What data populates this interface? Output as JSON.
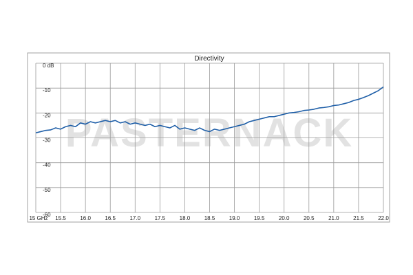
{
  "chart_data": {
    "type": "line",
    "title": "Directivity",
    "watermark": "PASTERNACK",
    "x": [
      15.0,
      15.1,
      15.2,
      15.3,
      15.4,
      15.5,
      15.6,
      15.7,
      15.8,
      15.9,
      16.0,
      16.1,
      16.2,
      16.3,
      16.4,
      16.5,
      16.6,
      16.7,
      16.8,
      16.9,
      17.0,
      17.1,
      17.2,
      17.3,
      17.4,
      17.5,
      17.6,
      17.7,
      17.8,
      17.9,
      18.0,
      18.1,
      18.2,
      18.3,
      18.4,
      18.5,
      18.6,
      18.7,
      18.8,
      18.9,
      19.0,
      19.1,
      19.2,
      19.3,
      19.4,
      19.5,
      19.6,
      19.7,
      19.8,
      19.9,
      20.0,
      20.1,
      20.2,
      20.3,
      20.4,
      20.5,
      20.6,
      20.7,
      20.8,
      20.9,
      21.0,
      21.1,
      21.2,
      21.3,
      21.4,
      21.5,
      21.6,
      21.7,
      21.8,
      21.9,
      22.0
    ],
    "series": [
      {
        "name": "Directivity",
        "color": "#1f5fa8",
        "values": [
          -28,
          -27.5,
          -27,
          -26.8,
          -26,
          -26.5,
          -25.5,
          -25,
          -25.5,
          -24,
          -24.5,
          -23.5,
          -24,
          -23.5,
          -23,
          -23.5,
          -23,
          -24,
          -23.5,
          -24.5,
          -24,
          -24.5,
          -25,
          -24.5,
          -25.5,
          -25,
          -25.5,
          -26,
          -25,
          -26.5,
          -26,
          -26.5,
          -27,
          -26,
          -27,
          -27.5,
          -26.5,
          -27,
          -26.5,
          -26,
          -25.5,
          -25,
          -24.5,
          -23.5,
          -23,
          -22.5,
          -22,
          -21.5,
          -21.5,
          -21,
          -20.5,
          -20,
          -19.8,
          -19.5,
          -19,
          -18.8,
          -18.5,
          -18,
          -17.8,
          -17.5,
          -17,
          -16.8,
          -16.3,
          -15.8,
          -15,
          -14.5,
          -13.8,
          -13,
          -12,
          -11,
          -9.5
        ]
      }
    ],
    "xlim": [
      15,
      22
    ],
    "xticks": [
      {
        "value": 15,
        "label": "15 GHz"
      },
      15.5,
      {
        "value": 16,
        "label": "16.0"
      },
      16.5,
      {
        "value": 17,
        "label": "17.0"
      },
      17.5,
      {
        "value": 18,
        "label": "18.0"
      },
      18.5,
      {
        "value": 19,
        "label": "19.0"
      },
      19.5,
      {
        "value": 20,
        "label": "20.0"
      },
      20.5,
      {
        "value": 21,
        "label": "21.0"
      },
      21.5,
      {
        "value": 22,
        "label": "22.0"
      }
    ],
    "ylim": [
      -60,
      0
    ],
    "yticks": [
      {
        "value": 0,
        "label": "0 dB"
      },
      -10,
      -20,
      -30,
      -40,
      -50,
      -60
    ],
    "grid": true
  }
}
